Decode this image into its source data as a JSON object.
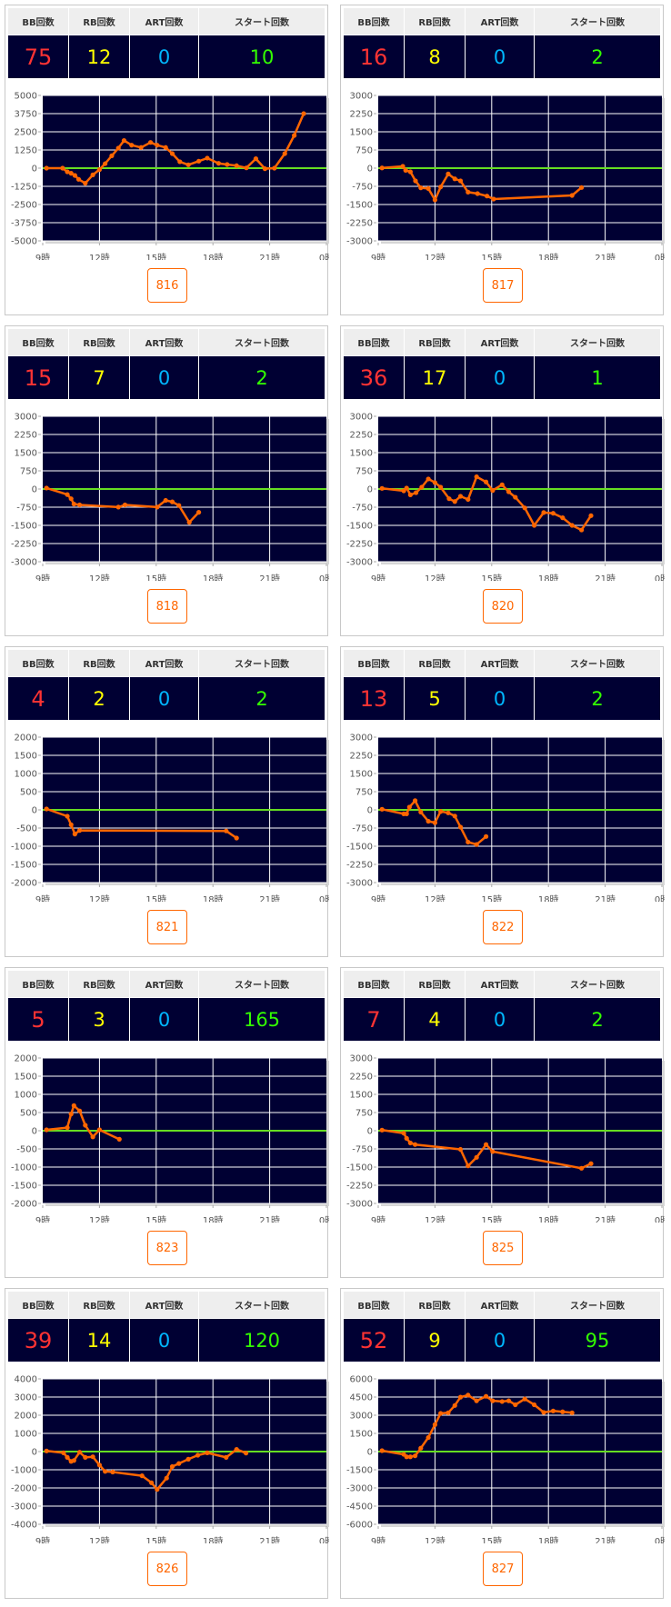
{
  "headers": [
    "BB回数",
    "RB回数",
    "ART回数",
    "スタート回数"
  ],
  "x_ticks": [
    "9時",
    "12時",
    "15時",
    "18時",
    "21時",
    "0時"
  ],
  "colors": {
    "bb": "#ff3333",
    "rb": "#ffff00",
    "art": "#00b7ff",
    "start": "#33ff00",
    "line": "#ff6600",
    "zero_line": "#66dd22",
    "plot_bg": "#000033",
    "button": "#ff6600"
  },
  "panels": [
    {
      "bb": "75",
      "rb": "12",
      "art": "0",
      "start": "10",
      "machine": "816"
    },
    {
      "bb": "16",
      "rb": "8",
      "art": "0",
      "start": "2",
      "machine": "817"
    },
    {
      "bb": "15",
      "rb": "7",
      "art": "0",
      "start": "2",
      "machine": "818"
    },
    {
      "bb": "36",
      "rb": "17",
      "art": "0",
      "start": "1",
      "machine": "820"
    },
    {
      "bb": "4",
      "rb": "2",
      "art": "0",
      "start": "2",
      "machine": "821"
    },
    {
      "bb": "13",
      "rb": "5",
      "art": "0",
      "start": "2",
      "machine": "822"
    },
    {
      "bb": "5",
      "rb": "3",
      "art": "0",
      "start": "165",
      "machine": "823"
    },
    {
      "bb": "7",
      "rb": "4",
      "art": "0",
      "start": "2",
      "machine": "825"
    },
    {
      "bb": "39",
      "rb": "14",
      "art": "0",
      "start": "120",
      "machine": "826"
    },
    {
      "bb": "52",
      "rb": "9",
      "art": "0",
      "start": "95",
      "machine": "827"
    }
  ],
  "chart_data": [
    {
      "type": "line",
      "title": "816",
      "xlim": [
        9,
        24
      ],
      "ylim": [
        -5000,
        5000
      ],
      "y_ticks": [
        "5000",
        "3750",
        "2500",
        "1250",
        "0",
        "-1250",
        "-2500",
        "-3750",
        "-5000"
      ],
      "points": [
        [
          9.2,
          0
        ],
        [
          10.05,
          0
        ],
        [
          10.3,
          -250
        ],
        [
          10.5,
          -350
        ],
        [
          10.7,
          -500
        ],
        [
          10.9,
          -770
        ],
        [
          11.25,
          -1040
        ],
        [
          11.65,
          -460
        ],
        [
          12,
          -100
        ],
        [
          12.3,
          310
        ],
        [
          12.65,
          850
        ],
        [
          13,
          1380
        ],
        [
          13.3,
          1900
        ],
        [
          13.7,
          1580
        ],
        [
          14.2,
          1420
        ],
        [
          14.7,
          1770
        ],
        [
          15.05,
          1580
        ],
        [
          15.5,
          1420
        ],
        [
          15.85,
          1000
        ],
        [
          16.25,
          440
        ],
        [
          16.7,
          230
        ],
        [
          17.25,
          480
        ],
        [
          17.7,
          690
        ],
        [
          18.3,
          330
        ],
        [
          18.75,
          250
        ],
        [
          19.25,
          170
        ],
        [
          19.77,
          20
        ],
        [
          20.27,
          650
        ],
        [
          20.75,
          -40
        ],
        [
          21.25,
          0
        ],
        [
          21.8,
          1000
        ],
        [
          22.3,
          2250
        ],
        [
          22.8,
          3750
        ]
      ]
    },
    {
      "type": "line",
      "title": "817",
      "xlim": [
        9,
        24
      ],
      "ylim": [
        -3000,
        3000
      ],
      "y_ticks": [
        "3000",
        "2250",
        "1500",
        "750",
        "0",
        "-750",
        "-1500",
        "-2250",
        "-3000"
      ],
      "points": [
        [
          9.2,
          10
        ],
        [
          10.3,
          75
        ],
        [
          10.45,
          -90
        ],
        [
          10.7,
          -150
        ],
        [
          10.97,
          -525
        ],
        [
          11.25,
          -810
        ],
        [
          11.65,
          -840
        ],
        [
          12,
          -1310
        ],
        [
          12.3,
          -775
        ],
        [
          12.7,
          -240
        ],
        [
          13.05,
          -440
        ],
        [
          13.35,
          -525
        ],
        [
          13.75,
          -990
        ],
        [
          14.25,
          -1050
        ],
        [
          14.75,
          -1150
        ],
        [
          15.1,
          -1275
        ],
        [
          19.25,
          -1125
        ],
        [
          19.75,
          -800
        ]
      ]
    },
    {
      "type": "line",
      "title": "818",
      "xlim": [
        9,
        24
      ],
      "ylim": [
        -3000,
        3000
      ],
      "y_ticks": [
        "3000",
        "2250",
        "1500",
        "750",
        "0",
        "-750",
        "-1500",
        "-2250",
        "-3000"
      ],
      "points": [
        [
          9.2,
          40
        ],
        [
          10.3,
          -230
        ],
        [
          10.5,
          -400
        ],
        [
          10.65,
          -620
        ],
        [
          10.95,
          -655
        ],
        [
          13,
          -745
        ],
        [
          13.35,
          -655
        ],
        [
          15.05,
          -745
        ],
        [
          15.5,
          -470
        ],
        [
          15.85,
          -530
        ],
        [
          16.2,
          -680
        ],
        [
          16.75,
          -1375
        ],
        [
          17.25,
          -960
        ]
      ]
    },
    {
      "type": "line",
      "title": "820",
      "xlim": [
        9,
        24
      ],
      "ylim": [
        -3000,
        3000
      ],
      "y_ticks": [
        "3000",
        "2250",
        "1500",
        "750",
        "0",
        "-750",
        "-1500",
        "-2250",
        "-3000"
      ],
      "points": [
        [
          9.2,
          25
        ],
        [
          10.35,
          -75
        ],
        [
          10.5,
          40
        ],
        [
          10.7,
          -240
        ],
        [
          11,
          -150
        ],
        [
          11.3,
          75
        ],
        [
          11.65,
          415
        ],
        [
          12,
          265
        ],
        [
          12.3,
          75
        ],
        [
          12.75,
          -400
        ],
        [
          13.05,
          -515
        ],
        [
          13.35,
          -300
        ],
        [
          13.75,
          -430
        ],
        [
          14.2,
          505
        ],
        [
          14.7,
          290
        ],
        [
          15.05,
          -60
        ],
        [
          15.55,
          175
        ],
        [
          15.9,
          -115
        ],
        [
          16.25,
          -340
        ],
        [
          16.75,
          -780
        ],
        [
          17.25,
          -1500
        ],
        [
          17.75,
          -970
        ],
        [
          18.25,
          -1000
        ],
        [
          18.75,
          -1185
        ],
        [
          19.25,
          -1500
        ],
        [
          19.75,
          -1690
        ],
        [
          20.25,
          -1100
        ]
      ]
    },
    {
      "type": "line",
      "title": "821",
      "xlim": [
        9,
        24
      ],
      "ylim": [
        -2000,
        2000
      ],
      "y_ticks": [
        "2000",
        "1500",
        "1000",
        "500",
        "0",
        "-500",
        "-1000",
        "-1500",
        "-2000"
      ],
      "points": [
        [
          9.2,
          25
        ],
        [
          10.3,
          -175
        ],
        [
          10.5,
          -410
        ],
        [
          10.7,
          -665
        ],
        [
          10.95,
          -565
        ],
        [
          18.7,
          -580
        ],
        [
          19.25,
          -775
        ]
      ]
    },
    {
      "type": "line",
      "title": "822",
      "xlim": [
        9,
        24
      ],
      "ylim": [
        -3000,
        3000
      ],
      "y_ticks": [
        "3000",
        "2250",
        "1500",
        "750",
        "0",
        "-750",
        "-1500",
        "-2250",
        "-3000"
      ],
      "points": [
        [
          9.2,
          25
        ],
        [
          10.35,
          -165
        ],
        [
          10.5,
          -165
        ],
        [
          10.65,
          115
        ],
        [
          10.95,
          380
        ],
        [
          11.25,
          -90
        ],
        [
          11.65,
          -470
        ],
        [
          12,
          -530
        ],
        [
          12.3,
          -65
        ],
        [
          12.7,
          -125
        ],
        [
          13.05,
          -255
        ],
        [
          13.35,
          -710
        ],
        [
          13.75,
          -1330
        ],
        [
          14.2,
          -1430
        ],
        [
          14.7,
          -1100
        ]
      ]
    },
    {
      "type": "line",
      "title": "823",
      "xlim": [
        9,
        24
      ],
      "ylim": [
        -2000,
        2000
      ],
      "y_ticks": [
        "2000",
        "1500",
        "1000",
        "500",
        "0",
        "-500",
        "-1000",
        "-1500",
        "-2000"
      ],
      "points": [
        [
          9.2,
          25
        ],
        [
          10.3,
          85
        ],
        [
          10.5,
          460
        ],
        [
          10.65,
          690
        ],
        [
          10.95,
          545
        ],
        [
          11.25,
          150
        ],
        [
          11.65,
          -170
        ],
        [
          12,
          25
        ],
        [
          13.05,
          -235
        ]
      ]
    },
    {
      "type": "line",
      "title": "825",
      "xlim": [
        9,
        24
      ],
      "ylim": [
        -3000,
        3000
      ],
      "y_ticks": [
        "3000",
        "2250",
        "1500",
        "750",
        "0",
        "-750",
        "-1500",
        "-2250",
        "-3000"
      ],
      "points": [
        [
          9.2,
          25
        ],
        [
          10.35,
          -100
        ],
        [
          10.5,
          -315
        ],
        [
          10.7,
          -505
        ],
        [
          10.95,
          -570
        ],
        [
          13.35,
          -770
        ],
        [
          13.75,
          -1450
        ],
        [
          14.2,
          -1100
        ],
        [
          14.7,
          -570
        ],
        [
          15.05,
          -860
        ],
        [
          19.75,
          -1550
        ],
        [
          20.25,
          -1360
        ]
      ]
    },
    {
      "type": "line",
      "title": "826",
      "xlim": [
        9,
        24
      ],
      "ylim": [
        -4000,
        4000
      ],
      "y_ticks": [
        "4000",
        "3000",
        "2000",
        "1000",
        "0",
        "-1000",
        "-2000",
        "-3000",
        "-4000"
      ],
      "points": [
        [
          9.2,
          35
        ],
        [
          10.1,
          -70
        ],
        [
          10.3,
          -320
        ],
        [
          10.5,
          -540
        ],
        [
          10.65,
          -490
        ],
        [
          10.95,
          -35
        ],
        [
          11.25,
          -320
        ],
        [
          11.65,
          -285
        ],
        [
          12,
          -740
        ],
        [
          12.3,
          -1090
        ],
        [
          12.7,
          -1125
        ],
        [
          14.25,
          -1330
        ],
        [
          14.75,
          -1715
        ],
        [
          15.05,
          -2085
        ],
        [
          15.55,
          -1460
        ],
        [
          15.85,
          -825
        ],
        [
          16.2,
          -655
        ],
        [
          16.7,
          -420
        ],
        [
          17.2,
          -200
        ],
        [
          17.7,
          -70
        ],
        [
          18.7,
          -320
        ],
        [
          19.25,
          120
        ],
        [
          19.75,
          -85
        ]
      ]
    },
    {
      "type": "line",
      "title": "827",
      "xlim": [
        9,
        24
      ],
      "ylim": [
        -6000,
        6000
      ],
      "y_ticks": [
        "6000",
        "4500",
        "3000",
        "1500",
        "0",
        "-1500",
        "-3000",
        "-4500",
        "-6000"
      ],
      "points": [
        [
          9.2,
          75
        ],
        [
          10.35,
          -230
        ],
        [
          10.5,
          -430
        ],
        [
          10.7,
          -430
        ],
        [
          10.95,
          -350
        ],
        [
          11.25,
          280
        ],
        [
          11.65,
          1160
        ],
        [
          12,
          2220
        ],
        [
          12.3,
          3150
        ],
        [
          12.7,
          3200
        ],
        [
          13.05,
          3800
        ],
        [
          13.35,
          4490
        ],
        [
          13.75,
          4660
        ],
        [
          14.2,
          4190
        ],
        [
          14.7,
          4560
        ],
        [
          15.05,
          4190
        ],
        [
          15.55,
          4130
        ],
        [
          15.9,
          4190
        ],
        [
          16.25,
          3860
        ],
        [
          16.75,
          4340
        ],
        [
          17.25,
          3860
        ],
        [
          17.75,
          3230
        ],
        [
          18.25,
          3350
        ],
        [
          18.75,
          3280
        ],
        [
          19.25,
          3200
        ]
      ]
    }
  ]
}
